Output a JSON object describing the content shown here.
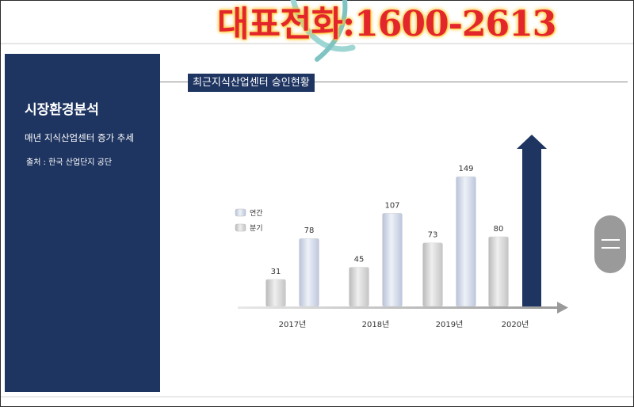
{
  "banner": {
    "text": "대표전화:1600-2613"
  },
  "sidebar": {
    "title": "시장환경분석",
    "subtitle": "매년 지식산업센터 증가 추세",
    "source": "출처 : 한국 산업단지 공단"
  },
  "chart_data": {
    "type": "bar",
    "title": "최근지식산업센터 승인현황",
    "categories": [
      "2017년",
      "2018년",
      "2019년",
      "2020년"
    ],
    "series": [
      {
        "name": "분기",
        "values": [
          31,
          45,
          73,
          80
        ],
        "color": "#c8c8c8"
      },
      {
        "name": "연간",
        "values": [
          78,
          107,
          149,
          null
        ],
        "color": "#c5cde0"
      }
    ],
    "highlight_arrow": {
      "category": "2020년",
      "color": "#1f3561"
    },
    "legend": {
      "position": "left",
      "entries": [
        "연간",
        "분기"
      ]
    },
    "grid": false
  },
  "colors": {
    "navy": "#1f3561",
    "banner_red": "#e2262b"
  }
}
